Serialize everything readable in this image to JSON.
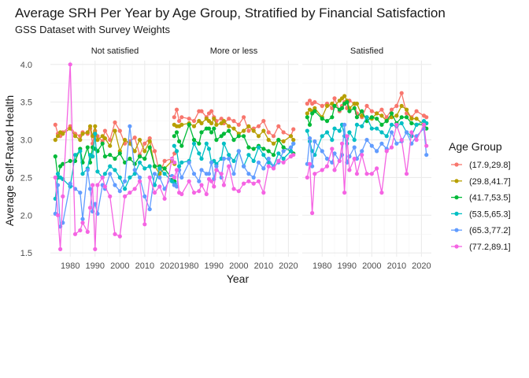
{
  "chart_data": {
    "type": "line",
    "title": "Average SRH Per Year by Age Group, Stratified by Financial Satisfaction",
    "subtitle": "GSS Dataset with Survey Weights",
    "xlabel": "Year",
    "ylabel": "Average Self-Rated Health",
    "xlim": [
      1972,
      2024
    ],
    "ylim": [
      1.45,
      4.05
    ],
    "x_ticks": [
      1980,
      1990,
      2000,
      2010,
      2020
    ],
    "y_ticks": [
      1.5,
      2.0,
      2.5,
      3.0,
      3.5,
      4.0
    ],
    "y_tick_labels": [
      "1.5",
      "2.0",
      "2.5",
      "3.0",
      "3.5",
      "4.0"
    ],
    "grid": true,
    "legend_title": "Age Group",
    "legend_position": "right",
    "x": [
      1974,
      1975,
      1976,
      1977,
      1980,
      1982,
      1984,
      1985,
      1987,
      1988,
      1989,
      1990,
      1991,
      1993,
      1994,
      1996,
      1998,
      2000,
      2002,
      2004,
      2006,
      2008,
      2010,
      2012,
      2014,
      2016,
      2018,
      2021,
      2022
    ],
    "series_names": [
      "(17.9,29.8]",
      "(29.8,41.7]",
      "(41.7,53.5]",
      "(53.5,65.3]",
      "(65.3,77.2]",
      "(77.2,89.1]"
    ],
    "series_colors": [
      "#F8766D",
      "#B79F00",
      "#00BA38",
      "#00BFC4",
      "#619CFF",
      "#F564E3"
    ],
    "panels": [
      {
        "label": "Not satisfied",
        "series": [
          {
            "name": "(17.9,29.8]",
            "values": [
              3.2,
              3.08,
              3.05,
              3.1,
              3.18,
              3.08,
              3.05,
              3.1,
              3.08,
              3.15,
              2.95,
              3.12,
              3.05,
              2.98,
              3.12,
              3.0,
              3.23,
              3.12,
              2.95,
              2.98,
              3.03,
              2.8,
              2.95,
              3.02,
              2.85,
              2.55,
              2.72,
              2.75,
              2.82
            ]
          },
          {
            "name": "(29.8,41.7]",
            "values": [
              3.0,
              3.05,
              3.1,
              3.08,
              3.15,
              3.05,
              3.0,
              3.08,
              3.1,
              3.18,
              3.05,
              3.18,
              3.0,
              3.05,
              3.02,
              2.92,
              3.12,
              2.85,
              3.0,
              2.95,
              2.85,
              3.0,
              2.85,
              2.98,
              2.65,
              2.55,
              2.62,
              2.72,
              2.68
            ]
          },
          {
            "name": "(41.7,53.5]",
            "values": [
              2.78,
              2.5,
              2.65,
              2.68,
              2.72,
              2.72,
              2.88,
              2.7,
              2.9,
              2.7,
              2.9,
              2.88,
              2.85,
              2.95,
              2.78,
              2.8,
              2.75,
              2.82,
              2.7,
              2.75,
              2.68,
              2.78,
              2.75,
              2.9,
              2.65,
              2.65,
              2.62,
              2.48,
              2.45
            ]
          },
          {
            "name": "(53.5,65.3]",
            "values": [
              2.22,
              2.55,
              2.5,
              2.48,
              2.38,
              2.8,
              2.85,
              2.55,
              2.62,
              2.8,
              2.78,
              3.08,
              2.58,
              2.5,
              2.55,
              2.65,
              2.6,
              2.5,
              2.35,
              2.5,
              2.55,
              2.7,
              2.62,
              2.65,
              2.4,
              2.62,
              2.55,
              2.45,
              2.42
            ]
          },
          {
            "name": "(65.3,77.2]",
            "values": [
              2.02,
              2.4,
              1.85,
              1.9,
              2.42,
              2.35,
              2.3,
              1.95,
              2.6,
              2.35,
              2.05,
              2.15,
              2.02,
              2.4,
              2.35,
              2.55,
              2.4,
              2.32,
              2.45,
              3.18,
              2.6,
              2.5,
              2.25,
              2.08,
              2.55,
              2.5,
              2.35,
              2.52,
              2.5
            ]
          },
          {
            "name": "(77.2,89.1]",
            "values": [
              2.5,
              2.0,
              1.55,
              2.25,
              4.0,
              1.75,
              1.8,
              1.9,
              1.78,
              2.1,
              2.4,
              1.55,
              2.4,
              2.5,
              2.38,
              2.25,
              1.75,
              1.72,
              2.25,
              2.3,
              2.35,
              2.45,
              1.88,
              2.5,
              2.3,
              2.38,
              2.22,
              2.75,
              2.7
            ]
          }
        ]
      },
      {
        "label": "More or less",
        "series": [
          {
            "name": "(17.9,29.8]",
            "values": [
              3.3,
              3.4,
              3.25,
              3.3,
              3.28,
              3.25,
              3.38,
              3.38,
              3.3,
              3.35,
              3.38,
              3.3,
              3.25,
              3.28,
              3.22,
              3.28,
              3.25,
              3.2,
              3.3,
              3.12,
              3.15,
              3.18,
              3.25,
              3.1,
              3.05,
              3.18,
              3.1,
              3.05,
              3.14
            ]
          },
          {
            "name": "(29.8,41.7]",
            "values": [
              3.2,
              3.18,
              3.18,
              3.2,
              3.22,
              3.18,
              3.25,
              3.22,
              3.28,
              3.25,
              3.22,
              3.28,
              3.2,
              3.22,
              3.25,
              3.18,
              3.15,
              3.08,
              3.12,
              3.18,
              3.12,
              3.05,
              3.12,
              3.0,
              2.95,
              3.0,
              2.98,
              3.05,
              3.0
            ]
          },
          {
            "name": "(41.7,53.5]",
            "values": [
              3.05,
              3.1,
              2.98,
              2.92,
              3.2,
              3.0,
              2.95,
              3.1,
              3.15,
              3.15,
              3.1,
              3.15,
              3.0,
              3.05,
              3.08,
              3.12,
              3.0,
              3.05,
              3.05,
              2.9,
              2.88,
              2.92,
              2.88,
              2.85,
              2.8,
              3.0,
              2.9,
              2.85,
              2.82
            ]
          },
          {
            "name": "(53.5,65.3]",
            "values": [
              2.92,
              2.85,
              2.65,
              2.7,
              2.72,
              2.95,
              2.82,
              2.75,
              2.95,
              2.88,
              2.7,
              2.72,
              2.68,
              2.75,
              2.95,
              2.8,
              2.72,
              2.85,
              2.65,
              2.8,
              2.72,
              2.9,
              2.8,
              2.7,
              2.65,
              2.82,
              2.75,
              2.85,
              2.95
            ]
          },
          {
            "name": "(65.3,77.2]",
            "values": [
              2.4,
              2.38,
              2.6,
              2.5,
              2.7,
              2.55,
              2.45,
              2.6,
              2.55,
              2.55,
              2.7,
              2.48,
              2.65,
              2.5,
              2.75,
              2.75,
              2.55,
              2.85,
              2.65,
              2.55,
              2.5,
              2.7,
              2.62,
              2.75,
              2.65,
              2.7,
              2.85,
              2.9,
              2.95
            ]
          },
          {
            "name": "(77.2,89.1]",
            "values": [
              2.5,
              2.6,
              2.3,
              2.28,
              2.45,
              2.3,
              2.32,
              2.4,
              2.28,
              2.48,
              2.45,
              2.38,
              2.6,
              2.55,
              2.4,
              2.65,
              2.35,
              2.32,
              2.42,
              2.45,
              2.42,
              2.45,
              2.3,
              2.65,
              2.62,
              2.72,
              2.7,
              2.78,
              2.8
            ]
          }
        ]
      },
      {
        "label": "Satisfied",
        "series": [
          {
            "name": "(17.9,29.8]",
            "values": [
              3.48,
              3.52,
              3.48,
              3.5,
              3.45,
              3.48,
              3.42,
              3.55,
              3.38,
              3.45,
              3.5,
              3.42,
              3.52,
              3.48,
              3.35,
              3.3,
              3.45,
              3.38,
              3.35,
              3.4,
              3.3,
              3.4,
              3.45,
              3.62,
              3.35,
              3.3,
              3.38,
              3.32,
              3.3
            ]
          },
          {
            "name": "(29.8,41.7]",
            "values": [
              3.35,
              3.4,
              3.38,
              3.42,
              3.3,
              3.45,
              3.48,
              3.45,
              3.52,
              3.55,
              3.58,
              3.52,
              3.42,
              3.48,
              3.48,
              3.32,
              3.3,
              3.28,
              3.35,
              3.32,
              3.25,
              3.3,
              3.32,
              3.45,
              3.4,
              3.28,
              3.28,
              3.2,
              3.22
            ]
          },
          {
            "name": "(41.7,53.5]",
            "values": [
              3.3,
              3.2,
              3.35,
              3.38,
              3.28,
              3.25,
              3.3,
              3.45,
              3.4,
              3.42,
              3.48,
              3.5,
              3.38,
              3.42,
              3.3,
              3.38,
              3.25,
              3.3,
              3.28,
              3.2,
              3.25,
              3.35,
              3.22,
              3.3,
              3.3,
              3.22,
              3.2,
              3.2,
              3.15
            ]
          },
          {
            "name": "(53.5,65.3]",
            "values": [
              3.12,
              2.98,
              2.85,
              2.8,
              3.05,
              3.1,
              3.0,
              3.15,
              3.12,
              3.2,
              3.05,
              2.95,
              3.1,
              3.0,
              3.2,
              3.18,
              3.3,
              3.15,
              3.15,
              3.1,
              3.05,
              3.2,
              3.18,
              3.22,
              3.1,
              3.05,
              3.2,
              3.25,
              3.22
            ]
          },
          {
            "name": "(65.3,77.2]",
            "values": [
              2.68,
              3.02,
              2.65,
              2.98,
              2.85,
              2.75,
              2.7,
              2.82,
              2.72,
              2.8,
              3.2,
              2.7,
              2.78,
              2.9,
              2.75,
              2.85,
              3.0,
              2.92,
              2.85,
              2.95,
              2.88,
              3.1,
              2.95,
              2.98,
              3.1,
              2.95,
              3.05,
              3.15,
              2.8
            ]
          },
          {
            "name": "(77.2,89.1]",
            "values": [
              2.5,
              2.68,
              2.03,
              2.55,
              2.6,
              2.65,
              2.88,
              2.6,
              2.72,
              2.95,
              2.3,
              3.05,
              2.6,
              2.75,
              2.55,
              2.8,
              2.55,
              2.55,
              2.62,
              2.3,
              2.85,
              2.9,
              3.2,
              3.0,
              2.55,
              3.1,
              3.0,
              3.2,
              2.92
            ]
          }
        ]
      }
    ]
  }
}
